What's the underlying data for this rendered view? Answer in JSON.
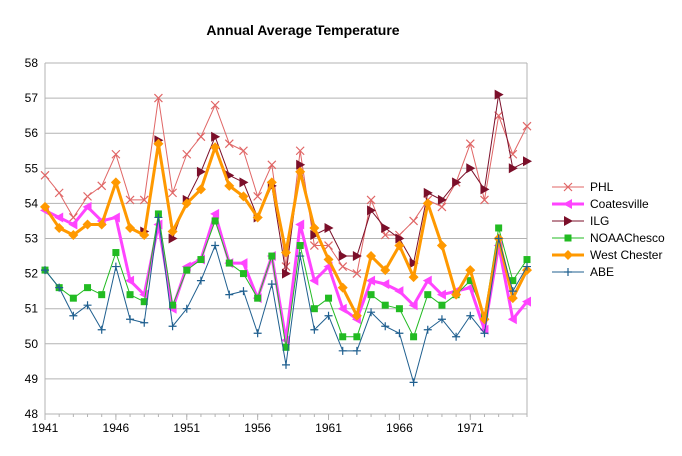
{
  "chart_data": {
    "type": "line",
    "title": "Annual Average Temperature",
    "xlabel": "",
    "ylabel": "",
    "xlim": [
      1941,
      1975
    ],
    "ylim": [
      48,
      58
    ],
    "x_ticks": [
      1941,
      1946,
      1951,
      1956,
      1961,
      1966,
      1971
    ],
    "y_ticks": [
      48,
      49,
      50,
      51,
      52,
      53,
      54,
      55,
      56,
      57,
      58
    ],
    "grid": "horizontal",
    "legend_position": "right",
    "x": [
      1941,
      1942,
      1943,
      1944,
      1945,
      1946,
      1947,
      1948,
      1949,
      1950,
      1951,
      1952,
      1953,
      1954,
      1955,
      1956,
      1957,
      1958,
      1959,
      1960,
      1961,
      1962,
      1963,
      1964,
      1965,
      1966,
      1967,
      1968,
      1969,
      1970,
      1971,
      1972,
      1973,
      1974,
      1975
    ],
    "series": [
      {
        "name": "PHL",
        "color": "#e06666",
        "marker": "x",
        "line_width": 1,
        "values": [
          54.8,
          54.3,
          53.6,
          54.2,
          54.5,
          55.4,
          54.1,
          54.1,
          57.0,
          54.3,
          55.4,
          55.9,
          56.8,
          55.7,
          55.5,
          54.2,
          55.1,
          52.2,
          55.5,
          52.8,
          52.8,
          52.2,
          52.0,
          54.1,
          53.1,
          53.1,
          53.5,
          54.1,
          53.9,
          54.6,
          55.7,
          54.1,
          56.5,
          55.4,
          56.2
        ]
      },
      {
        "name": "Coatesville",
        "color": "#ff44ff",
        "marker": "triangle-left",
        "line_width": 3,
        "values": [
          53.8,
          53.6,
          53.4,
          53.9,
          53.5,
          53.6,
          51.8,
          51.4,
          53.4,
          51.0,
          52.2,
          52.4,
          53.7,
          52.3,
          52.3,
          51.3,
          52.5,
          50.1,
          53.4,
          51.8,
          52.2,
          51.0,
          50.7,
          51.8,
          51.7,
          51.5,
          51.1,
          51.8,
          51.4,
          51.5,
          51.6,
          50.4,
          52.8,
          50.7,
          51.2
        ]
      },
      {
        "name": "ILG",
        "color": "#7b0f2a",
        "marker": "triangle-right",
        "line_width": 1,
        "values": [
          null,
          null,
          null,
          null,
          null,
          null,
          null,
          53.2,
          55.8,
          53.0,
          54.1,
          54.9,
          55.9,
          54.8,
          54.6,
          53.6,
          54.5,
          52.0,
          55.1,
          53.1,
          53.3,
          52.5,
          52.5,
          53.8,
          53.3,
          53.0,
          52.3,
          54.3,
          54.1,
          54.6,
          55.0,
          54.4,
          57.1,
          55.0,
          55.2
        ]
      },
      {
        "name": "NOAAChesco",
        "color": "#22bb22",
        "marker": "square",
        "line_width": 1,
        "values": [
          52.1,
          51.6,
          51.3,
          51.6,
          51.4,
          52.6,
          51.4,
          51.2,
          53.7,
          51.1,
          52.1,
          52.4,
          53.5,
          52.3,
          52.0,
          51.3,
          52.5,
          49.9,
          52.8,
          51.0,
          51.3,
          50.2,
          50.2,
          51.4,
          51.1,
          51.0,
          50.2,
          51.4,
          51.1,
          51.4,
          51.8,
          50.8,
          53.3,
          51.8,
          52.4
        ]
      },
      {
        "name": "West Chester",
        "color": "#ff9900",
        "marker": "diamond",
        "line_width": 3,
        "values": [
          53.9,
          53.3,
          53.1,
          53.4,
          53.4,
          54.6,
          53.3,
          53.1,
          55.7,
          53.2,
          54.0,
          54.4,
          55.6,
          54.5,
          54.2,
          53.6,
          54.6,
          52.6,
          54.9,
          53.3,
          52.4,
          51.6,
          50.8,
          52.5,
          52.1,
          52.8,
          51.9,
          54.0,
          52.8,
          51.4,
          52.1,
          50.7,
          53.0,
          51.3,
          52.1
        ]
      },
      {
        "name": "ABE",
        "color": "#1f5f8f",
        "marker": "plus",
        "line_width": 1,
        "values": [
          52.1,
          51.6,
          50.8,
          51.1,
          50.4,
          52.2,
          50.7,
          50.6,
          53.6,
          50.5,
          51.0,
          51.8,
          52.8,
          51.4,
          51.5,
          50.3,
          51.7,
          49.4,
          52.5,
          50.4,
          50.8,
          49.8,
          49.8,
          50.9,
          50.5,
          50.3,
          48.9,
          50.4,
          50.7,
          50.2,
          50.8,
          50.3,
          53.0,
          51.5,
          52.2
        ]
      }
    ]
  }
}
